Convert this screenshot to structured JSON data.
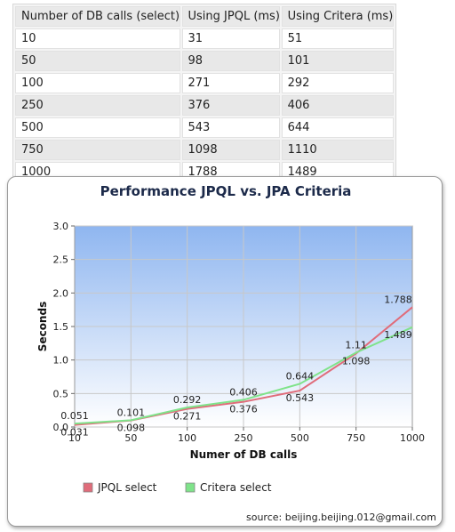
{
  "table": {
    "headers": [
      "Number of DB calls (select)",
      "Using JPQL (ms)",
      "Using Critera (ms)"
    ],
    "rows": [
      [
        "10",
        "31",
        "51"
      ],
      [
        "50",
        "98",
        "101"
      ],
      [
        "100",
        "271",
        "292"
      ],
      [
        "250",
        "376",
        "406"
      ],
      [
        "500",
        "543",
        "644"
      ],
      [
        "750",
        "1098",
        "1110"
      ],
      [
        "1000",
        "1788",
        "1489"
      ]
    ]
  },
  "chart_data": {
    "type": "line",
    "title": "Performance JPQL vs. JPA Criteria",
    "xlabel": "Numer of DB calls",
    "ylabel": "Seconds",
    "categories": [
      "10",
      "50",
      "100",
      "250",
      "500",
      "750",
      "1000"
    ],
    "ylim": [
      0,
      3
    ],
    "yticks": [
      "0.0",
      "0.5",
      "1.0",
      "1.5",
      "2.0",
      "2.5",
      "3.0"
    ],
    "grid": true,
    "legend_position": "bottom-left",
    "series": [
      {
        "name": "JPQL select",
        "color": "#e06c7a",
        "values": [
          0.031,
          0.098,
          0.271,
          0.376,
          0.543,
          1.098,
          1.788
        ],
        "labels": [
          "0.031",
          "0.098",
          "0.271",
          "0.376",
          "0.543",
          "1.098",
          "1.788"
        ]
      },
      {
        "name": "Critera select",
        "color": "#7fe38a",
        "values": [
          0.051,
          0.101,
          0.292,
          0.406,
          0.644,
          1.11,
          1.489
        ],
        "labels": [
          "0.051",
          "0.101",
          "0.292",
          "0.406",
          "0.644",
          "1.11",
          "1.489"
        ]
      }
    ],
    "plot_background_top": "#8fb6f0",
    "plot_background_bottom": "#ffffff"
  },
  "source": "source: beijing.beijing.012@gmail.com"
}
